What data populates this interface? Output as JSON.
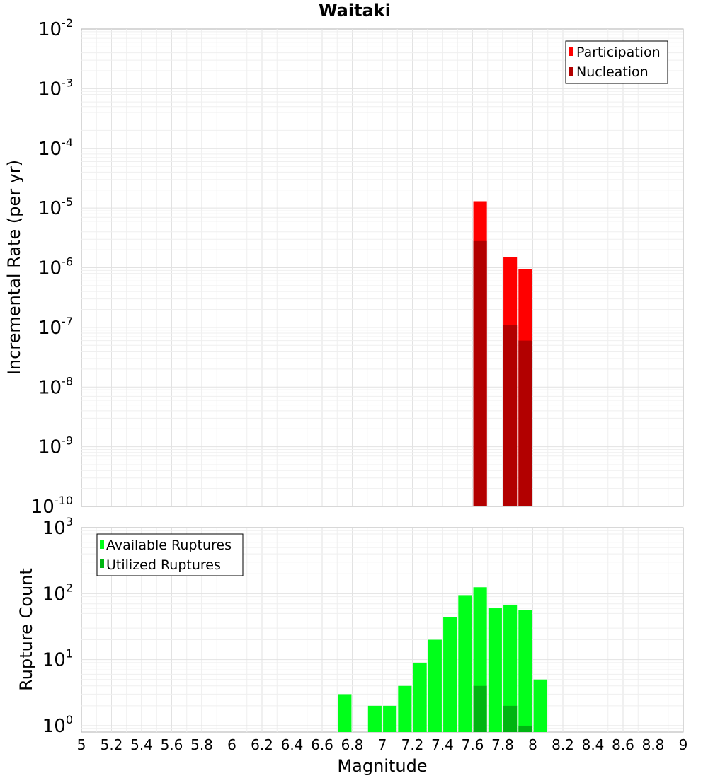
{
  "chart_data": [
    {
      "type": "bar",
      "panel": "top",
      "title": "Waitaki",
      "xlabel": "",
      "ylabel": "Incremental Rate (per yr)",
      "yscale": "log",
      "ylim": [
        1e-10,
        0.01
      ],
      "xlim": [
        5,
        9
      ],
      "bar_width": 0.09,
      "y_ticks": [
        {
          "base": "10",
          "exp": "-10",
          "value": 1e-10
        },
        {
          "base": "10",
          "exp": "-9",
          "value": 1e-09
        },
        {
          "base": "10",
          "exp": "-8",
          "value": 1e-08
        },
        {
          "base": "10",
          "exp": "-7",
          "value": 1e-07
        },
        {
          "base": "10",
          "exp": "-6",
          "value": 1e-06
        },
        {
          "base": "10",
          "exp": "-5",
          "value": 1e-05
        },
        {
          "base": "10",
          "exp": "-4",
          "value": 0.0001
        },
        {
          "base": "10",
          "exp": "-3",
          "value": 0.001
        },
        {
          "base": "10",
          "exp": "-2",
          "value": 0.01
        }
      ],
      "legend_position": "top-right",
      "series": [
        {
          "name": "Participation",
          "color": "#ff0000",
          "points": [
            {
              "x": 7.65,
              "y": 1.3e-05
            },
            {
              "x": 7.85,
              "y": 1.5e-06
            },
            {
              "x": 7.95,
              "y": 9.5e-07
            }
          ]
        },
        {
          "name": "Nucleation",
          "color": "#b20000",
          "points": [
            {
              "x": 7.65,
              "y": 2.8e-06
            },
            {
              "x": 7.85,
              "y": 1.1e-07
            },
            {
              "x": 7.95,
              "y": 6e-08
            }
          ]
        }
      ]
    },
    {
      "type": "bar",
      "panel": "bottom",
      "title": "",
      "xlabel": "Magnitude",
      "ylabel": "Rupture Count",
      "yscale": "log",
      "ylim": [
        0.8,
        1000
      ],
      "xlim": [
        5,
        9
      ],
      "bar_width": 0.09,
      "y_ticks": [
        {
          "base": "10",
          "exp": "0",
          "value": 1
        },
        {
          "base": "10",
          "exp": "1",
          "value": 10
        },
        {
          "base": "10",
          "exp": "2",
          "value": 100
        },
        {
          "base": "10",
          "exp": "3",
          "value": 1000
        }
      ],
      "x_ticks": [
        "5",
        "5.2",
        "5.4",
        "5.6",
        "5.8",
        "6",
        "6.2",
        "6.4",
        "6.6",
        "6.8",
        "7",
        "7.2",
        "7.4",
        "7.6",
        "7.8",
        "8",
        "8.2",
        "8.4",
        "8.6",
        "8.8",
        "9"
      ],
      "legend_position": "top-left",
      "series": [
        {
          "name": "Available Ruptures",
          "color": "#00ff1a",
          "points": [
            {
              "x": 6.75,
              "y": 3
            },
            {
              "x": 6.95,
              "y": 2
            },
            {
              "x": 7.05,
              "y": 2
            },
            {
              "x": 7.15,
              "y": 4
            },
            {
              "x": 7.25,
              "y": 9
            },
            {
              "x": 7.35,
              "y": 20
            },
            {
              "x": 7.45,
              "y": 44
            },
            {
              "x": 7.55,
              "y": 95
            },
            {
              "x": 7.65,
              "y": 125
            },
            {
              "x": 7.75,
              "y": 60
            },
            {
              "x": 7.85,
              "y": 68
            },
            {
              "x": 7.95,
              "y": 56
            },
            {
              "x": 8.05,
              "y": 5
            }
          ]
        },
        {
          "name": "Utilized Ruptures",
          "color": "#00b512",
          "points": [
            {
              "x": 7.65,
              "y": 4
            },
            {
              "x": 7.85,
              "y": 2
            },
            {
              "x": 7.95,
              "y": 1
            }
          ]
        }
      ]
    }
  ]
}
